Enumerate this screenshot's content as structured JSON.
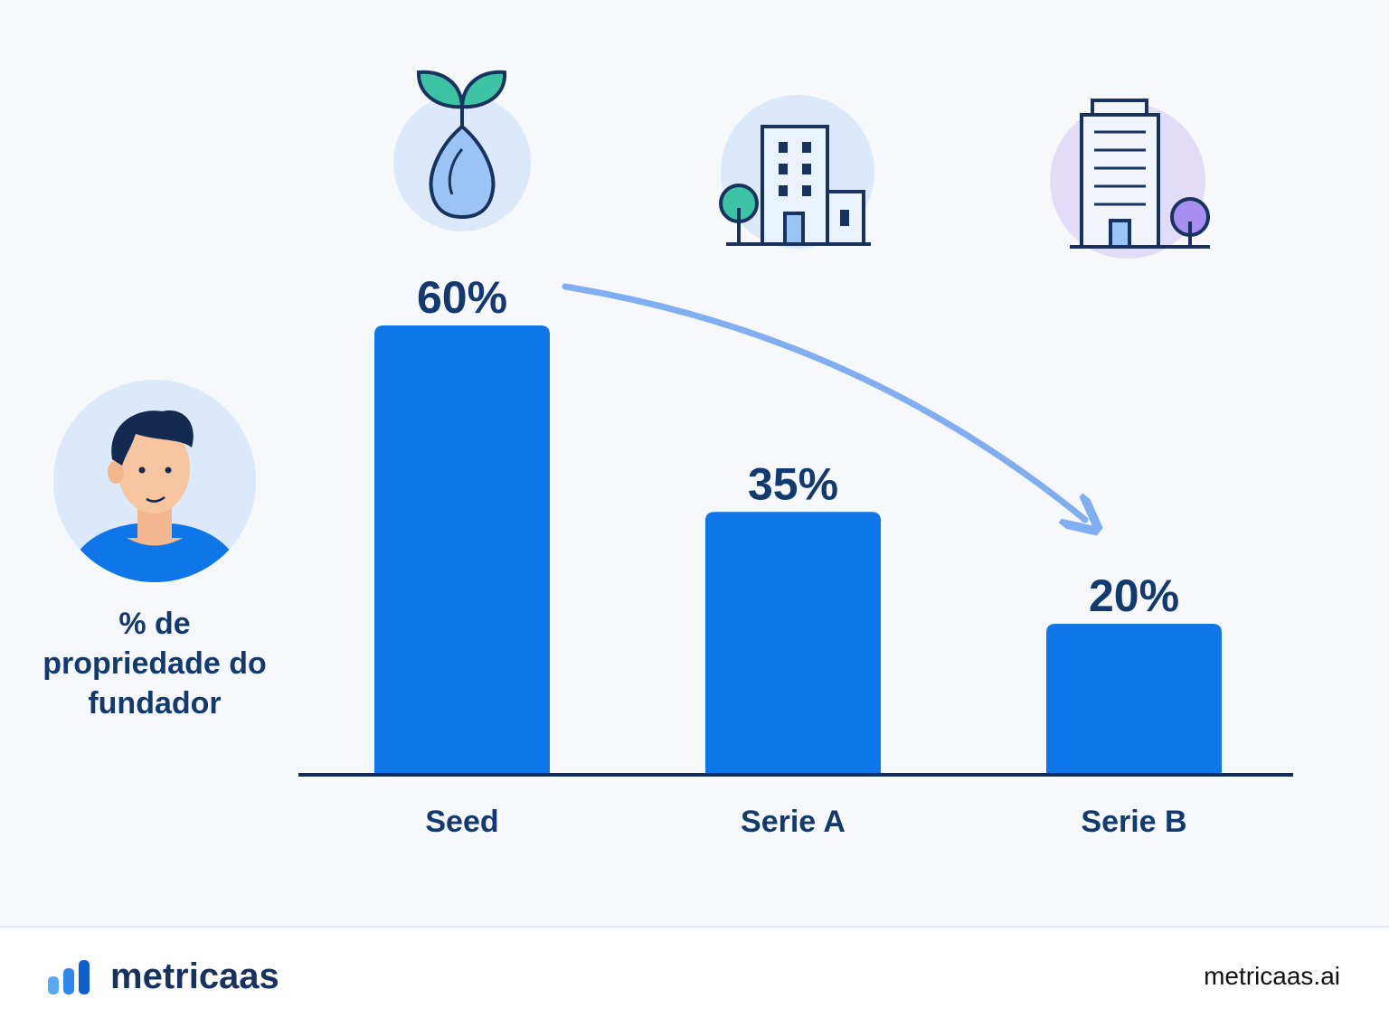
{
  "chart_data": {
    "type": "bar",
    "ylabel": "% de propriedade do fundador",
    "categories": [
      "Seed",
      "Serie A",
      "Serie B"
    ],
    "values": [
      60,
      35,
      20
    ],
    "value_labels": [
      "60%",
      "35%",
      "20%"
    ],
    "color": "#0f76ea",
    "ylim": [
      0,
      60
    ]
  },
  "footer": {
    "brand": "metricaas",
    "url": "metricaas.ai"
  }
}
